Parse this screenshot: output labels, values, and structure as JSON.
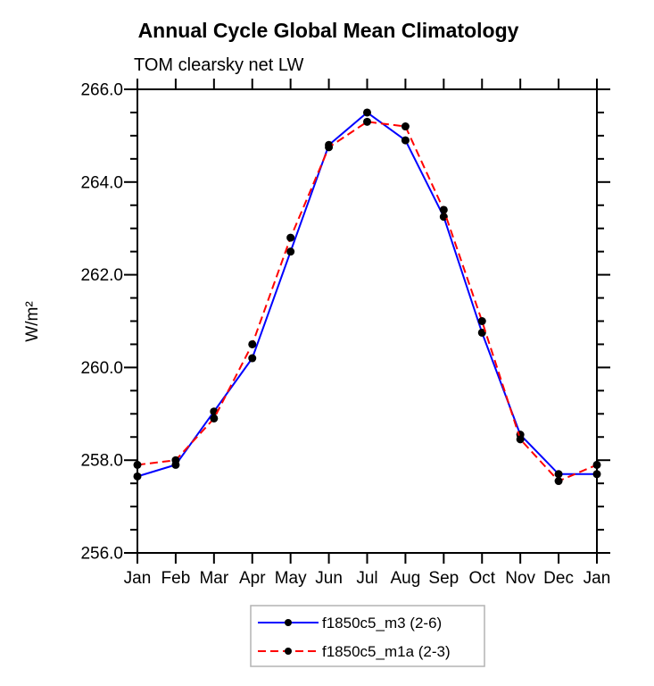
{
  "chart_data": {
    "type": "line",
    "title": "Annual Cycle Global Mean Climatology",
    "subtitle": "TOM clearsky net LW",
    "ylabel": "W/m²",
    "xlabel": "",
    "categories": [
      "Jan",
      "Feb",
      "Mar",
      "Apr",
      "May",
      "Jun",
      "Jul",
      "Aug",
      "Sep",
      "Oct",
      "Nov",
      "Dec",
      "Jan"
    ],
    "series": [
      {
        "name": "f1850c5_m3 (2-6)",
        "color": "#0000ff",
        "line_style": "solid",
        "marker": "black-dot",
        "values": [
          257.65,
          257.9,
          259.05,
          260.2,
          262.5,
          264.8,
          265.5,
          264.9,
          263.25,
          260.75,
          258.55,
          257.7,
          257.7
        ]
      },
      {
        "name": "f1850c5_m1a (2-3)",
        "color": "#ff0000",
        "line_style": "dashed",
        "marker": "black-dot",
        "values": [
          257.9,
          258.0,
          258.9,
          260.5,
          262.8,
          264.75,
          265.3,
          265.2,
          263.4,
          261.0,
          258.45,
          257.55,
          257.9
        ]
      }
    ],
    "ylim": [
      256.0,
      266.0
    ],
    "yticks": [
      256.0,
      258.0,
      260.0,
      262.0,
      264.0,
      266.0
    ],
    "ytick_labels": [
      "256.0",
      "258.0",
      "260.0",
      "262.0",
      "264.0",
      "266.0"
    ],
    "ytick_minor_step": 0.5,
    "grid": false,
    "legend_position": "bottom-center",
    "marker_color": "#000000"
  },
  "colors": {
    "background": "#ffffff",
    "axis": "#000000",
    "legend_border": "#b3b3b3",
    "text": "#000000"
  }
}
